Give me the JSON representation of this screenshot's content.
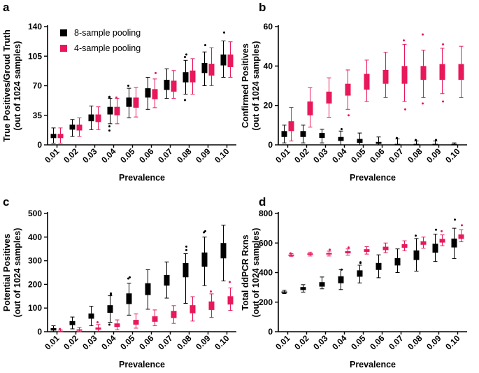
{
  "figure": {
    "categories": [
      "0.01",
      "0.02",
      "0.03",
      "0.04",
      "0.05",
      "0.06",
      "0.07",
      "0.08",
      "0.09",
      "0.10"
    ],
    "series_names": [
      "8-sample pooling",
      "4-sample pooling"
    ],
    "colors": {
      "8-sample pooling": "#000000",
      "4-sample pooling": "#e8185a"
    }
  },
  "chart_data": [
    {
      "panel": "a",
      "type": "box",
      "xlabel": "Prevalence",
      "ylabel": [
        "True Positives/Groud Truth",
        "(out of 1024 samples)"
      ],
      "ylim": [
        0,
        140
      ],
      "yticks": [
        0,
        35,
        70,
        105,
        140
      ],
      "legend": [
        "8-sample pooling",
        "4-sample pooling"
      ],
      "categories": [
        "0.01",
        "0.02",
        "0.03",
        "0.04",
        "0.05",
        "0.06",
        "0.07",
        "0.08",
        "0.09",
        "0.10"
      ],
      "series": [
        {
          "name": "8-sample pooling",
          "boxes": [
            {
              "q1": 8,
              "q3": 13,
              "lo": 2,
              "hi": 20,
              "out": []
            },
            {
              "q1": 18,
              "q3": 24,
              "lo": 10,
              "hi": 30,
              "out": []
            },
            {
              "q1": 28,
              "q3": 36,
              "lo": 18,
              "hi": 46,
              "out": []
            },
            {
              "q1": 36,
              "q3": 45,
              "lo": 25,
              "hi": 55,
              "out": [
                17,
                22,
                57,
                56
              ]
            },
            {
              "q1": 45,
              "q3": 56,
              "lo": 32,
              "hi": 67,
              "out": [
                70
              ]
            },
            {
              "q1": 56,
              "q3": 67,
              "lo": 42,
              "hi": 80,
              "out": []
            },
            {
              "q1": 65,
              "q3": 77,
              "lo": 55,
              "hi": 90,
              "out": []
            },
            {
              "q1": 74,
              "q3": 86,
              "lo": 60,
              "hi": 100,
              "out": [
                53,
                104,
                107
              ]
            },
            {
              "q1": 85,
              "q3": 97,
              "lo": 70,
              "hi": 110,
              "out": [
                118
              ]
            },
            {
              "q1": 94,
              "q3": 107,
              "lo": 80,
              "hi": 123,
              "out": [
                133
              ]
            }
          ]
        },
        {
          "name": "4-sample pooling",
          "boxes": [
            {
              "q1": 8,
              "q3": 13,
              "lo": 2,
              "hi": 20,
              "out": []
            },
            {
              "q1": 17,
              "q3": 24,
              "lo": 10,
              "hi": 32,
              "out": []
            },
            {
              "q1": 27,
              "q3": 36,
              "lo": 18,
              "hi": 45,
              "out": []
            },
            {
              "q1": 35,
              "q3": 45,
              "lo": 25,
              "hi": 55,
              "out": [
                56
              ]
            },
            {
              "q1": 44,
              "q3": 56,
              "lo": 33,
              "hi": 68,
              "out": []
            },
            {
              "q1": 54,
              "q3": 66,
              "lo": 44,
              "hi": 78,
              "out": [
                85
              ]
            },
            {
              "q1": 63,
              "q3": 76,
              "lo": 55,
              "hi": 88,
              "out": []
            },
            {
              "q1": 74,
              "q3": 88,
              "lo": 60,
              "hi": 102,
              "out": []
            },
            {
              "q1": 82,
              "q3": 96,
              "lo": 70,
              "hi": 115,
              "out": []
            },
            {
              "q1": 92,
              "q3": 107,
              "lo": 80,
              "hi": 122,
              "out": []
            }
          ]
        }
      ]
    },
    {
      "panel": "b",
      "type": "box",
      "xlabel": "Prevalence",
      "ylabel": [
        "Confirmed Positives",
        "(out of 1024 samples)"
      ],
      "ylim": [
        0,
        60
      ],
      "yticks": [
        0,
        20,
        40,
        60
      ],
      "legend": [],
      "categories": [
        "0.01",
        "0.02",
        "0.03",
        "0.04",
        "0.05",
        "0.06",
        "0.07",
        "0.08",
        "0.09",
        "0.10"
      ],
      "series": [
        {
          "name": "8-sample pooling",
          "boxes": [
            {
              "q1": 4,
              "q3": 7,
              "lo": 1,
              "hi": 10,
              "out": []
            },
            {
              "q1": 4,
              "q3": 7,
              "lo": 1,
              "hi": 10,
              "out": []
            },
            {
              "q1": 3.5,
              "q3": 6,
              "lo": 1,
              "hi": 8,
              "out": []
            },
            {
              "q1": 2,
              "q3": 4,
              "lo": 0,
              "hi": 7,
              "out": [
                8
              ]
            },
            {
              "q1": 1,
              "q3": 3,
              "lo": 0,
              "hi": 6,
              "out": []
            },
            {
              "q1": 0.5,
              "q3": 1.5,
              "lo": 0,
              "hi": 4,
              "out": []
            },
            {
              "q1": 0,
              "q3": 0.5,
              "lo": 0,
              "hi": 3,
              "out": [
                3.5
              ]
            },
            {
              "q1": 0,
              "q3": 0.5,
              "lo": 0,
              "hi": 2,
              "out": [
                2.5
              ]
            },
            {
              "q1": 0,
              "q3": 0.5,
              "lo": 0,
              "hi": 2,
              "out": [
                2.5
              ]
            },
            {
              "q1": 0,
              "q3": 0.5,
              "lo": 0,
              "hi": 1,
              "out": []
            }
          ]
        },
        {
          "name": "4-sample pooling",
          "boxes": [
            {
              "q1": 7,
              "q3": 12,
              "lo": 2,
              "hi": 19,
              "out": []
            },
            {
              "q1": 15,
              "q3": 22,
              "lo": 9,
              "hi": 29,
              "out": []
            },
            {
              "q1": 21,
              "q3": 27,
              "lo": 14,
              "hi": 34,
              "out": []
            },
            {
              "q1": 25,
              "q3": 31,
              "lo": 18,
              "hi": 38,
              "out": [
                15
              ]
            },
            {
              "q1": 28,
              "q3": 36,
              "lo": 22,
              "hi": 43,
              "out": []
            },
            {
              "q1": 31,
              "q3": 38,
              "lo": 24,
              "hi": 47,
              "out": []
            },
            {
              "q1": 31,
              "q3": 40,
              "lo": 22,
              "hi": 51,
              "out": [
                18,
                53
              ]
            },
            {
              "q1": 33,
              "q3": 40,
              "lo": 24,
              "hi": 48,
              "out": [
                21,
                56
              ]
            },
            {
              "q1": 33,
              "q3": 41,
              "lo": 26,
              "hi": 49,
              "out": [
                22,
                51
              ]
            },
            {
              "q1": 33,
              "q3": 41,
              "lo": 24,
              "hi": 50,
              "out": []
            }
          ]
        }
      ]
    },
    {
      "panel": "c",
      "type": "box",
      "xlabel": "Prevalence",
      "ylabel": [
        "Potential Positives",
        "(out of 1024 samples)"
      ],
      "ylim": [
        0,
        500
      ],
      "yticks": [
        0,
        100,
        200,
        300,
        400,
        500
      ],
      "legend": [],
      "categories": [
        "0.01",
        "0.02",
        "0.03",
        "0.04",
        "0.05",
        "0.06",
        "0.07",
        "0.08",
        "0.09",
        "0.10"
      ],
      "series": [
        {
          "name": "8-sample pooling",
          "boxes": [
            {
              "q1": 5,
              "q3": 15,
              "lo": 0,
              "hi": 25,
              "out": []
            },
            {
              "q1": 28,
              "q3": 45,
              "lo": 12,
              "hi": 62,
              "out": []
            },
            {
              "q1": 55,
              "q3": 77,
              "lo": 25,
              "hi": 108,
              "out": []
            },
            {
              "q1": 80,
              "q3": 112,
              "lo": 40,
              "hi": 152,
              "out": [
                30,
                157,
                162
              ]
            },
            {
              "q1": 117,
              "q3": 162,
              "lo": 70,
              "hi": 205,
              "out": [
                225,
                230
              ]
            },
            {
              "q1": 155,
              "q3": 205,
              "lo": 95,
              "hi": 262,
              "out": []
            },
            {
              "q1": 195,
              "q3": 240,
              "lo": 142,
              "hi": 295,
              "out": []
            },
            {
              "q1": 230,
              "q3": 290,
              "lo": 120,
              "hi": 330,
              "out": [
                345,
                360
              ]
            },
            {
              "q1": 275,
              "q3": 335,
              "lo": 195,
              "hi": 400,
              "out": [
                420,
                425
              ]
            },
            {
              "q1": 310,
              "q3": 375,
              "lo": 215,
              "hi": 450,
              "out": []
            }
          ]
        },
        {
          "name": "4-sample pooling",
          "boxes": [
            {
              "q1": 1,
              "q3": 4,
              "lo": 0,
              "hi": 8,
              "out": [
                12
              ]
            },
            {
              "q1": 4,
              "q3": 10,
              "lo": 0,
              "hi": 18,
              "out": []
            },
            {
              "q1": 9,
              "q3": 18,
              "lo": 2,
              "hi": 30,
              "out": [
                40
              ]
            },
            {
              "q1": 20,
              "q3": 35,
              "lo": 8,
              "hi": 50,
              "out": []
            },
            {
              "q1": 30,
              "q3": 50,
              "lo": 15,
              "hi": 75,
              "out": []
            },
            {
              "q1": 42,
              "q3": 65,
              "lo": 25,
              "hi": 92,
              "out": []
            },
            {
              "q1": 58,
              "q3": 88,
              "lo": 35,
              "hi": 110,
              "out": []
            },
            {
              "q1": 78,
              "q3": 112,
              "lo": 45,
              "hi": 148,
              "out": []
            },
            {
              "q1": 92,
              "q3": 128,
              "lo": 60,
              "hi": 160,
              "out": [
                170
              ]
            },
            {
              "q1": 115,
              "q3": 150,
              "lo": 90,
              "hi": 185,
              "out": [
                210
              ]
            }
          ]
        }
      ]
    },
    {
      "panel": "d",
      "type": "box",
      "xlabel": "Prevalence",
      "ylabel": [
        "Total ddPCR Rxns",
        "(out of 1024 samples)"
      ],
      "ylim": [
        0,
        800
      ],
      "yticks": [
        0,
        200,
        400,
        600,
        800
      ],
      "legend": [],
      "categories": [
        "0.01",
        "0.02",
        "0.03",
        "0.04",
        "0.05",
        "0.06",
        "0.07",
        "0.08",
        "0.09",
        "0.10"
      ],
      "series": [
        {
          "name": "8-sample pooling",
          "boxes": [
            {
              "q1": 263,
              "q3": 272,
              "lo": 258,
              "hi": 280,
              "out": []
            },
            {
              "q1": 282,
              "q3": 302,
              "lo": 268,
              "hi": 318,
              "out": []
            },
            {
              "q1": 305,
              "q3": 335,
              "lo": 290,
              "hi": 370,
              "out": []
            },
            {
              "q1": 328,
              "q3": 375,
              "lo": 285,
              "hi": 420,
              "out": [
                420
              ]
            },
            {
              "q1": 372,
              "q3": 415,
              "lo": 330,
              "hi": 450,
              "out": [
                465,
                470
              ]
            },
            {
              "q1": 418,
              "q3": 465,
              "lo": 365,
              "hi": 520,
              "out": []
            },
            {
              "q1": 448,
              "q3": 498,
              "lo": 400,
              "hi": 560,
              "out": []
            },
            {
              "q1": 485,
              "q3": 550,
              "lo": 410,
              "hi": 630,
              "out": [
                650
              ]
            },
            {
              "q1": 535,
              "q3": 595,
              "lo": 475,
              "hi": 660,
              "out": [
                690
              ]
            },
            {
              "q1": 570,
              "q3": 630,
              "lo": 495,
              "hi": 700,
              "out": [
                758
              ]
            }
          ]
        },
        {
          "name": "4-sample pooling",
          "boxes": [
            {
              "q1": 515,
              "q3": 522,
              "lo": 510,
              "hi": 528,
              "out": [
                530
              ]
            },
            {
              "q1": 520,
              "q3": 530,
              "lo": 512,
              "hi": 538,
              "out": []
            },
            {
              "q1": 522,
              "q3": 533,
              "lo": 512,
              "hi": 545,
              "out": [
                555
              ]
            },
            {
              "q1": 530,
              "q3": 545,
              "lo": 518,
              "hi": 560,
              "out": [
                570
              ]
            },
            {
              "q1": 540,
              "q3": 558,
              "lo": 525,
              "hi": 575,
              "out": []
            },
            {
              "q1": 552,
              "q3": 575,
              "lo": 535,
              "hi": 600,
              "out": []
            },
            {
              "q1": 568,
              "q3": 592,
              "lo": 548,
              "hi": 615,
              "out": []
            },
            {
              "q1": 588,
              "q3": 612,
              "lo": 565,
              "hi": 640,
              "out": []
            },
            {
              "q1": 603,
              "q3": 628,
              "lo": 582,
              "hi": 655,
              "out": [
                680
              ]
            },
            {
              "q1": 628,
              "q3": 658,
              "lo": 608,
              "hi": 690,
              "out": [
                720
              ]
            }
          ]
        }
      ]
    }
  ]
}
